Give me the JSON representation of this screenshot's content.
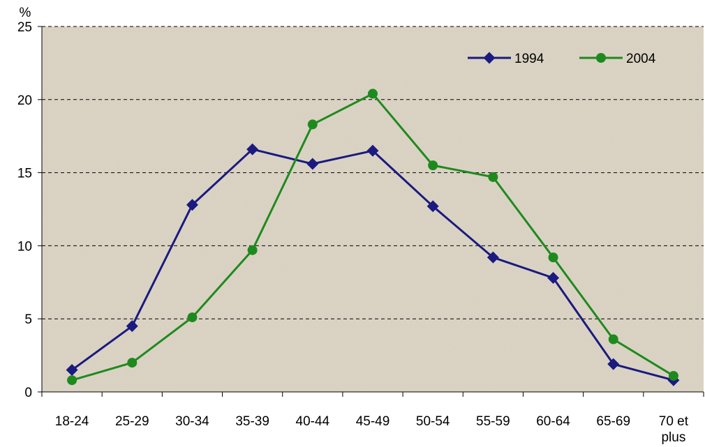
{
  "chart_data": {
    "type": "line",
    "title": "",
    "xlabel": "",
    "ylabel": "%",
    "ylim": [
      0,
      25
    ],
    "y_ticks": [
      "0",
      "5",
      "10",
      "15",
      "20",
      "25"
    ],
    "categories": [
      [
        "18-24"
      ],
      [
        "25-29"
      ],
      [
        "30-34"
      ],
      [
        "35-39"
      ],
      [
        "40-44"
      ],
      [
        "45-49"
      ],
      [
        "50-54"
      ],
      [
        "55-59"
      ],
      [
        "60-64"
      ],
      [
        "65-69"
      ],
      [
        "70 et",
        "plus"
      ]
    ],
    "series": [
      {
        "name": "1994",
        "color": "#1a1a80",
        "marker": "diamond",
        "values": [
          1.5,
          4.5,
          12.8,
          16.6,
          15.6,
          16.5,
          12.7,
          9.2,
          7.8,
          1.9,
          0.8
        ]
      },
      {
        "name": "2004",
        "color": "#1e8a1e",
        "marker": "circle",
        "values": [
          0.8,
          2.0,
          5.1,
          9.7,
          18.3,
          20.4,
          15.5,
          14.7,
          9.2,
          3.6,
          1.1
        ]
      }
    ],
    "grid": "horizontal dashed",
    "legend": "top-right",
    "background_color": "#ddd6c6"
  }
}
